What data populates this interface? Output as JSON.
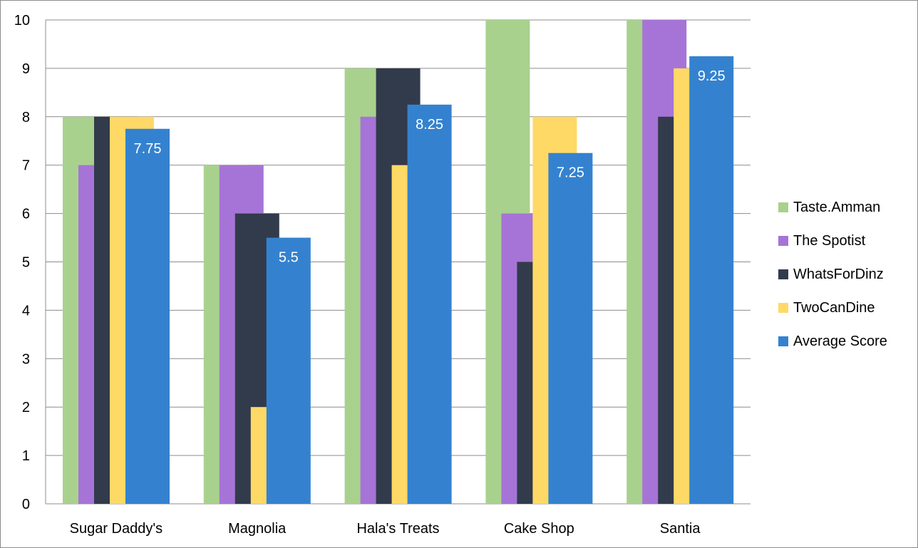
{
  "chart_data": {
    "type": "bar",
    "categories": [
      "Sugar Daddy's",
      "Magnolia",
      "Hala's Treats",
      "Cake Shop",
      "Santia"
    ],
    "series": [
      {
        "name": "Taste.Amman",
        "color": "#a9d18e",
        "values": [
          8,
          7,
          9,
          10,
          10
        ]
      },
      {
        "name": "The Spotist",
        "color": "#a674d6",
        "values": [
          7,
          7,
          8,
          6,
          10
        ]
      },
      {
        "name": "WhatsForDinz",
        "color": "#323b4b",
        "values": [
          8,
          6,
          9,
          5,
          8
        ]
      },
      {
        "name": "TwoCanDine",
        "color": "#ffd966",
        "values": [
          8,
          2,
          7,
          8,
          9
        ]
      },
      {
        "name": "Average Score",
        "color": "#3482cf",
        "values": [
          7.75,
          5.5,
          8.25,
          7.25,
          9.25
        ]
      }
    ],
    "data_labels": [
      "7.75",
      "5.5",
      "8.25",
      "7.25",
      "9.25"
    ],
    "ylim": [
      0,
      10
    ],
    "yticks": [
      "0",
      "1",
      "2",
      "3",
      "4",
      "5",
      "6",
      "7",
      "8",
      "9",
      "10"
    ],
    "grid": true,
    "legend_position": "right"
  }
}
